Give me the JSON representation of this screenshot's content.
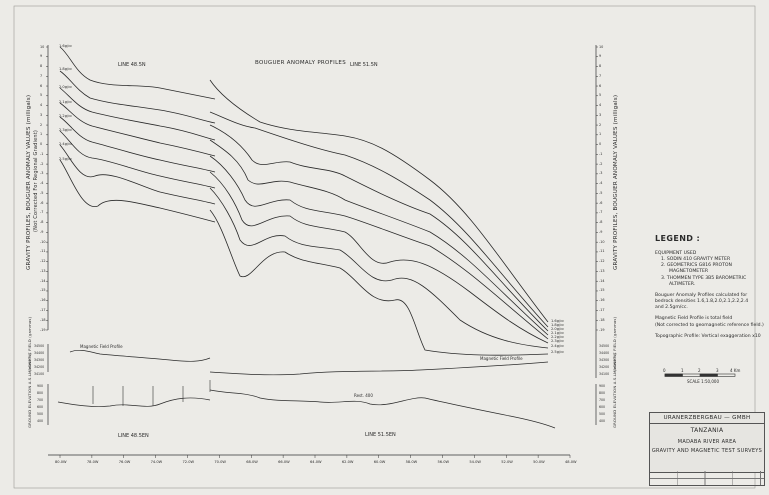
{
  "title": "BOUGUER ANOMALY PROFILES",
  "line_labels": {
    "top_left": "LINE 48.5N",
    "top_right": "LINE 51.5N",
    "bottom_left": "LINE 48.5EN",
    "bottom_right": "LINE 51.5EN"
  },
  "left_axis": {
    "main_label": "GRAVITY PROFILES, BOUGUER ANOMALY VALUES (milligals)",
    "main_sub": "(Not Corrected For Regional Gradient)",
    "mag_label": "MAGNETIC FIELD (gammas)",
    "topo_label": "GROUND ELEVATION A.S.L. (meters)"
  },
  "right_axis": {
    "main_label": "GRAVITY PROFILES, BOUGUER ANOMALY VALUES (milligals)",
    "mag_label": "MAGNETIC FIELD (gammas)",
    "topo_label": "GROUND ELEVATION A.S.L. (meters)"
  },
  "profile_labels_left": [
    "1.6g/cc",
    "1.8g/cc",
    "2.0g/cc",
    "2.1g/cc",
    "2.2g/cc",
    "2.3g/cc",
    "2.4g/cc",
    "2.5g/cc"
  ],
  "profile_labels_right": [
    "1.6g/cc",
    "1.8g/cc",
    "2.0g/cc",
    "2.1g/cc",
    "2.2g/cc",
    "2.3g/cc",
    "2.4g/cc",
    "2.5g/cc"
  ],
  "gravity_ticks": [
    "10",
    "9",
    "8",
    "7",
    "6",
    "5",
    "4",
    "3",
    "2",
    "1",
    "0",
    "-1",
    "-2",
    "-3",
    "-4",
    "-5",
    "-6",
    "-7",
    "-8",
    "-9",
    "-10",
    "-11",
    "-12",
    "-13",
    "-14",
    "-15",
    "-16",
    "-17",
    "-18",
    "-19"
  ],
  "mag_ticks": [
    "34500",
    "34400",
    "34300",
    "34200",
    "34100"
  ],
  "topo_ticks": [
    "900",
    "800",
    "700",
    "600",
    "500",
    "400"
  ],
  "mag_profile_labels": {
    "left": "Magnetic Field Profile",
    "right": "Magnetic Field Profile"
  },
  "topo_annotation": "Rest. 400",
  "x_ticks": [
    "80.0W",
    "78.0W",
    "76.0W",
    "74.0W",
    "72.0W",
    "70.0W",
    "68.0W",
    "66.0W",
    "64.0W",
    "62.0W",
    "60.0W",
    "58.0W",
    "56.0W",
    "54.0W",
    "52.0W",
    "50.0W",
    "48.0W"
  ],
  "legend": {
    "title": "LEGEND :",
    "equipment_heading": "EQUIPMENT USED",
    "items": [
      "1. SODIN 410 GRAVITY METER",
      "2. GEOMETRICS G816 PROTON",
      "MAGNETOMETER",
      "3. THOMMEN TYPE 3B5 BAROMETRIC",
      "ALTIMETER."
    ],
    "note1": [
      "Bouguer Anomaly Profiles calculated for",
      "bedrock densities 1.6,1.8,2.0,2.1,2.2,2.4",
      "and 2.5gm/cc."
    ],
    "note2": [
      "Magnetic Field Profile is total field",
      "(Not corrected to geomagnetic reference field.)"
    ],
    "note3": "Topographic Profile: Vertical exaggeration x10"
  },
  "scale": {
    "labels": [
      "0",
      "1",
      "2",
      "3",
      "4 Km"
    ],
    "caption": "SCALE 1:50,000"
  },
  "title_block": {
    "firm": "URANERZBERGBAU — GMBH",
    "country": "TANZANIA",
    "area": "MADABA RIVER AREA",
    "survey": "GRAVITY AND MAGNETIC TEST SURVEYS"
  }
}
